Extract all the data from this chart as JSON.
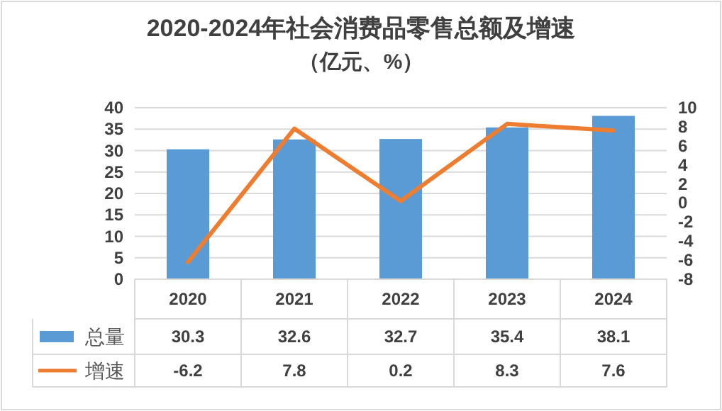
{
  "chart_data": {
    "type": "bar",
    "title": "2020-2024年社会消费品零售总额及增速",
    "subtitle": "（亿元、%）",
    "categories": [
      "2020",
      "2021",
      "2022",
      "2023",
      "2024"
    ],
    "series": [
      {
        "name": "总量",
        "color": "#5b9bd5",
        "values": [
          30.3,
          32.6,
          32.7,
          35.4,
          38.1
        ]
      },
      {
        "name": "增速",
        "type": "line",
        "axis": "y2",
        "color": "#ed7d31",
        "values": [
          -6.2,
          7.8,
          0.2,
          8.3,
          7.6
        ]
      }
    ],
    "ylim": [
      0,
      40
    ],
    "yticks": [
      0,
      5,
      10,
      15,
      20,
      25,
      30,
      35,
      40
    ],
    "y2lim": [
      -8,
      10
    ],
    "y2ticks": [
      -8,
      -6,
      -4,
      -2,
      0,
      2,
      4,
      6,
      8,
      10
    ],
    "grid": "y",
    "data_labels": true,
    "legend": "bottom left",
    "marker": "none",
    "line_style": "solid"
  }
}
